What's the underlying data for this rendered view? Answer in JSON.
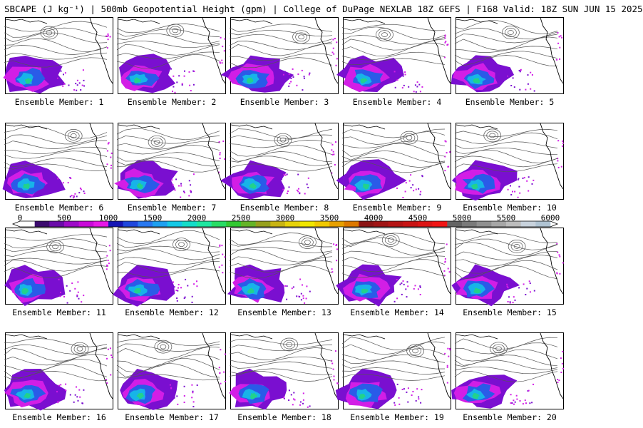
{
  "title": "SBCAPE (J kg⁻¹) | 500mb Geopotential Height (gpm) | College of DuPage NEXLAB 18Z GEFS | F168 Valid: 18Z SUN JUN 15 2025",
  "panels": [
    {
      "label": "Ensemble Member: 1"
    },
    {
      "label": "Ensemble Member: 2"
    },
    {
      "label": "Ensemble Member: 3"
    },
    {
      "label": "Ensemble Member: 4"
    },
    {
      "label": "Ensemble Member: 5"
    },
    {
      "label": "Ensemble Member: 6"
    },
    {
      "label": "Ensemble Member: 7"
    },
    {
      "label": "Ensemble Member: 8"
    },
    {
      "label": "Ensemble Member: 9"
    },
    {
      "label": "Ensemble Member: 10"
    },
    {
      "label": "Ensemble Member: 11"
    },
    {
      "label": "Ensemble Member: 12"
    },
    {
      "label": "Ensemble Member: 13"
    },
    {
      "label": "Ensemble Member: 14"
    },
    {
      "label": "Ensemble Member: 15"
    },
    {
      "label": "Ensemble Member: 16"
    },
    {
      "label": "Ensemble Member: 17"
    },
    {
      "label": "Ensemble Member: 18"
    },
    {
      "label": "Ensemble Member: 19"
    },
    {
      "label": "Ensemble Member: 20"
    }
  ],
  "colorbar": {
    "ticks": [
      "0",
      "500",
      "1000",
      "1500",
      "2000",
      "2500",
      "3000",
      "3500",
      "4000",
      "4500",
      "5000",
      "5500",
      "6000"
    ],
    "min": 0,
    "max": 6000,
    "colors": [
      "#ffffff",
      "#3b0a6e",
      "#6a0ca8",
      "#9e0bc8",
      "#c80ad8",
      "#e618e6",
      "#1414b4",
      "#1e46dc",
      "#2878f0",
      "#1ea0f0",
      "#14c8e6",
      "#14dcc8",
      "#1ee6a0",
      "#28dc64",
      "#32c832",
      "#64b428",
      "#96a01e",
      "#c8b414",
      "#e6d20a",
      "#f0e600",
      "#f0c800",
      "#e6a000",
      "#dc7800",
      "#8c1414",
      "#a01414",
      "#b41414",
      "#c81414",
      "#dc1414",
      "#f01414",
      "#646464",
      "#7a7a7a",
      "#909090",
      "#a6a6a6",
      "#bcbcbc",
      "#c8d2dc",
      "#afc3d2"
    ]
  },
  "cape_colors": {
    "low1": "#7a0fd0",
    "low2": "#d21ee6",
    "mid": "#2a5be8",
    "mid2": "#17b4e8",
    "high": "#22d28c"
  }
}
